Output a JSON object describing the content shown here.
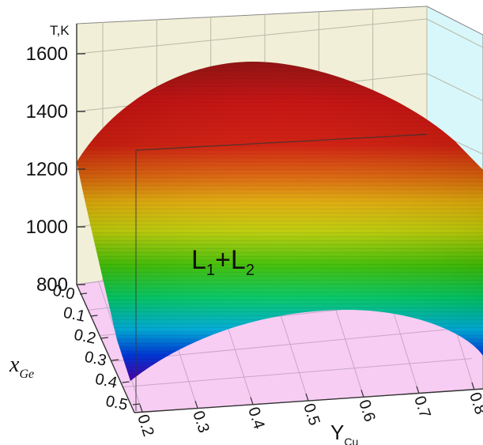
{
  "chart_data": {
    "type": "surface-3d",
    "zlabel": "T,K",
    "ylabel": "x",
    "ylabel_sub": "Ge",
    "xlabel": "Y",
    "xlabel_sub": "Cu",
    "region_label": "L",
    "region_sub1": "1",
    "region_plus": "+L",
    "region_sub2": "2",
    "z_ticks": [
      "800",
      "1000",
      "1200",
      "1400",
      "1600"
    ],
    "x_ticks": [
      "0.2",
      "0.3",
      "0.4",
      "0.5",
      "0.6",
      "0.7",
      "0.8"
    ],
    "y_ticks": [
      "0.0",
      "0.1",
      "0.2",
      "0.3",
      "0.4",
      "0.5"
    ],
    "xlim": [
      0.2,
      0.8
    ],
    "ylim": [
      0.0,
      0.5
    ],
    "zlim": [
      800,
      1600
    ],
    "surface_peak": {
      "Y_Cu": 0.5,
      "x_Ge": 0.0,
      "T": 1590
    },
    "surface_corner_values": {
      "Y_Cu_0.2_x_Ge_0.0": 1250,
      "Y_Cu_0.8_x_Ge_0.0": 1250
    },
    "colormap": [
      "#5a00c8",
      "#0040ff",
      "#00c8ff",
      "#00e070",
      "#40d000",
      "#c8d800",
      "#e8b000",
      "#e06000",
      "#d01000",
      "#c00000",
      "#8a0000"
    ],
    "colors": {
      "back_wall": "#f1efd7",
      "side_wall": "#d7f7fb",
      "floor": "#f7cdf3"
    }
  }
}
